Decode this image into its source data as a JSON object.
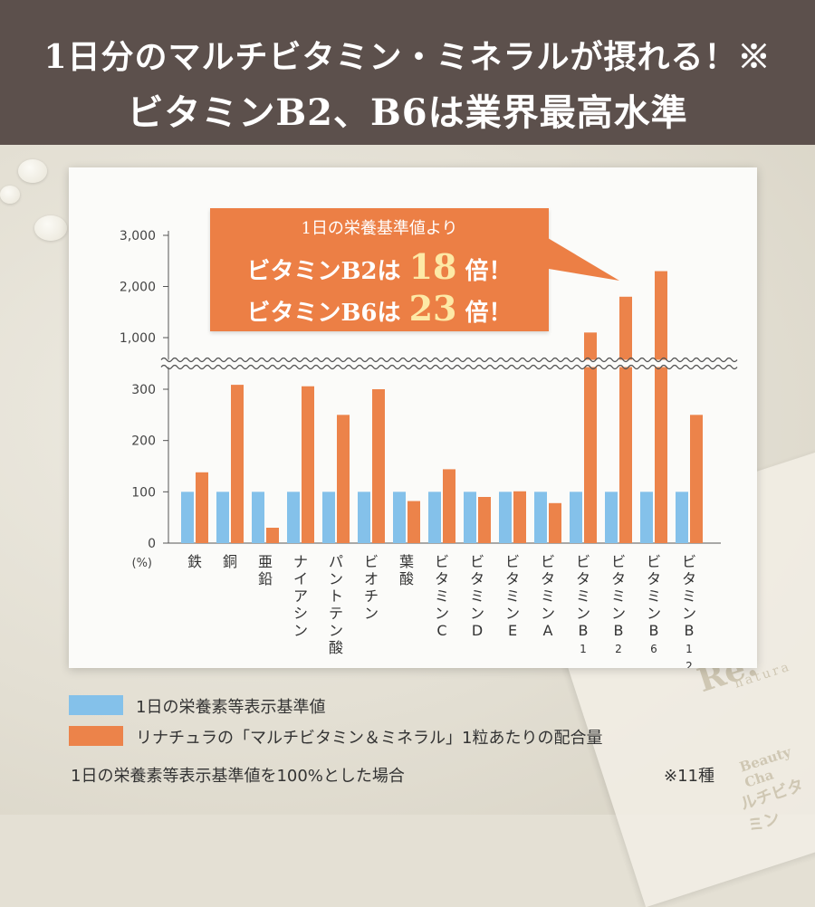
{
  "header": {
    "title_line1": "1日分のマルチビタミン・ミネラルが摂れる！※",
    "title_line2": "ビタミンB2、B6は業界最高水準"
  },
  "callout": {
    "line1": "1日の栄養基準値より",
    "b2_prefix": "ビタミンB2は",
    "b2_value": "18",
    "b2_suffix": "倍！",
    "b6_prefix": "ビタミンB6は",
    "b6_value": "23",
    "b6_suffix": "倍！"
  },
  "chart_data": {
    "type": "bar",
    "y_unit_label": "(%)",
    "y_ticks": [
      "0",
      "100",
      "200",
      "300",
      "1,000",
      "2,000",
      "3,000"
    ],
    "axis_break": "between 300 and 1,000",
    "categories": [
      "鉄",
      "銅",
      "亜鉛",
      "ナイアシン",
      "パントテン酸",
      "ビオチン",
      "葉酸",
      "ビタミンC",
      "ビタミンD",
      "ビタミンE",
      "ビタミンA",
      "ビタミンB1",
      "ビタミンB2",
      "ビタミンB6",
      "ビタミンB12"
    ],
    "series": [
      {
        "name": "1日の栄養素等表示基準値",
        "color": "#84c1ea",
        "values": [
          100,
          100,
          100,
          100,
          100,
          100,
          100,
          100,
          100,
          100,
          100,
          100,
          100,
          100,
          100
        ]
      },
      {
        "name": "リナチュラの「マルチビタミン＆ミネラル」1粒あたりの配合量",
        "color": "#ec834a",
        "values": [
          138,
          360,
          30,
          340,
          250,
          300,
          82,
          144,
          90,
          101,
          78,
          1100,
          1800,
          2300,
          250
        ]
      }
    ],
    "ylim": [
      0,
      3000
    ],
    "legend_position": "bottom",
    "grid": false
  },
  "footer": {
    "note_left": "1日の栄養素等表示基準値を100%とした場合",
    "note_right": "※11種"
  },
  "package": {
    "brand": "Re:",
    "brand_sub": "natura",
    "label": "Beauty Cha",
    "label2": "ルチビタミン"
  }
}
